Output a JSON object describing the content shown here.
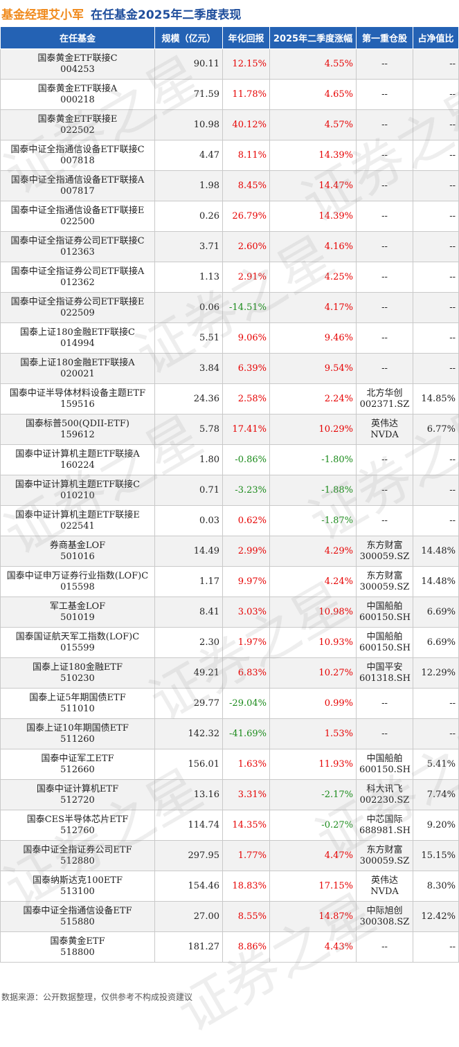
{
  "header": {
    "manager": "基金经理艾小军",
    "subtitle": "在任基金2025年二季度表现"
  },
  "columns": [
    "在任基金",
    "规模（亿元）",
    "年化回报",
    "2025年二季度涨幅",
    "第一重仓股",
    "占净值比"
  ],
  "rows": [
    {
      "name": "国泰黄金ETF联接C",
      "code": "004253",
      "size": "90.11",
      "annual": "12.15%",
      "annual_sign": "pos",
      "q2": "4.55%",
      "q2_sign": "pos",
      "stock": "--",
      "stock_code": "",
      "ratio": "--"
    },
    {
      "name": "国泰黄金ETF联接A",
      "code": "000218",
      "size": "71.59",
      "annual": "11.78%",
      "annual_sign": "pos",
      "q2": "4.65%",
      "q2_sign": "pos",
      "stock": "--",
      "stock_code": "",
      "ratio": "--"
    },
    {
      "name": "国泰黄金ETF联接E",
      "code": "022502",
      "size": "10.98",
      "annual": "40.12%",
      "annual_sign": "pos",
      "q2": "4.57%",
      "q2_sign": "pos",
      "stock": "--",
      "stock_code": "",
      "ratio": "--"
    },
    {
      "name": "国泰中证全指通信设备ETF联接C",
      "code": "007818",
      "size": "4.47",
      "annual": "8.11%",
      "annual_sign": "pos",
      "q2": "14.39%",
      "q2_sign": "pos",
      "stock": "--",
      "stock_code": "",
      "ratio": "--"
    },
    {
      "name": "国泰中证全指通信设备ETF联接A",
      "code": "007817",
      "size": "1.98",
      "annual": "8.45%",
      "annual_sign": "pos",
      "q2": "14.47%",
      "q2_sign": "pos",
      "stock": "--",
      "stock_code": "",
      "ratio": "--"
    },
    {
      "name": "国泰中证全指通信设备ETF联接E",
      "code": "022500",
      "size": "0.26",
      "annual": "26.79%",
      "annual_sign": "pos",
      "q2": "14.39%",
      "q2_sign": "pos",
      "stock": "--",
      "stock_code": "",
      "ratio": "--"
    },
    {
      "name": "国泰中证全指证券公司ETF联接C",
      "code": "012363",
      "size": "3.71",
      "annual": "2.60%",
      "annual_sign": "pos",
      "q2": "4.16%",
      "q2_sign": "pos",
      "stock": "--",
      "stock_code": "",
      "ratio": "--"
    },
    {
      "name": "国泰中证全指证券公司ETF联接A",
      "code": "012362",
      "size": "1.13",
      "annual": "2.91%",
      "annual_sign": "pos",
      "q2": "4.25%",
      "q2_sign": "pos",
      "stock": "--",
      "stock_code": "",
      "ratio": "--"
    },
    {
      "name": "国泰中证全指证券公司ETF联接E",
      "code": "022509",
      "size": "0.06",
      "annual": "-14.51%",
      "annual_sign": "neg",
      "q2": "4.17%",
      "q2_sign": "pos",
      "stock": "--",
      "stock_code": "",
      "ratio": "--"
    },
    {
      "name": "国泰上证180金融ETF联接C",
      "code": "014994",
      "size": "5.51",
      "annual": "9.06%",
      "annual_sign": "pos",
      "q2": "9.46%",
      "q2_sign": "pos",
      "stock": "--",
      "stock_code": "",
      "ratio": "--"
    },
    {
      "name": "国泰上证180金融ETF联接A",
      "code": "020021",
      "size": "3.84",
      "annual": "6.39%",
      "annual_sign": "pos",
      "q2": "9.54%",
      "q2_sign": "pos",
      "stock": "--",
      "stock_code": "",
      "ratio": "--"
    },
    {
      "name": "国泰中证半导体材料设备主题ETF",
      "code": "159516",
      "size": "24.36",
      "annual": "2.58%",
      "annual_sign": "pos",
      "q2": "2.24%",
      "q2_sign": "pos",
      "stock": "北方华创",
      "stock_code": "002371.SZ",
      "ratio": "14.85%"
    },
    {
      "name": "国泰标普500(QDII-ETF)",
      "code": "159612",
      "size": "5.78",
      "annual": "17.41%",
      "annual_sign": "pos",
      "q2": "10.29%",
      "q2_sign": "pos",
      "stock": "英伟达",
      "stock_code": "NVDA",
      "ratio": "6.77%"
    },
    {
      "name": "国泰中证计算机主题ETF联接A",
      "code": "160224",
      "size": "1.80",
      "annual": "-0.86%",
      "annual_sign": "neg",
      "q2": "-1.80%",
      "q2_sign": "neg",
      "stock": "--",
      "stock_code": "",
      "ratio": "--"
    },
    {
      "name": "国泰中证计算机主题ETF联接C",
      "code": "010210",
      "size": "0.71",
      "annual": "-3.23%",
      "annual_sign": "neg",
      "q2": "-1.88%",
      "q2_sign": "neg",
      "stock": "--",
      "stock_code": "",
      "ratio": "--"
    },
    {
      "name": "国泰中证计算机主题ETF联接E",
      "code": "022541",
      "size": "0.03",
      "annual": "0.62%",
      "annual_sign": "pos",
      "q2": "-1.87%",
      "q2_sign": "neg",
      "stock": "--",
      "stock_code": "",
      "ratio": "--"
    },
    {
      "name": "券商基金LOF",
      "code": "501016",
      "size": "14.49",
      "annual": "2.99%",
      "annual_sign": "pos",
      "q2": "4.29%",
      "q2_sign": "pos",
      "stock": "东方财富",
      "stock_code": "300059.SZ",
      "ratio": "14.48%"
    },
    {
      "name": "国泰中证申万证券行业指数(LOF)C",
      "code": "015598",
      "size": "1.17",
      "annual": "9.97%",
      "annual_sign": "pos",
      "q2": "4.24%",
      "q2_sign": "pos",
      "stock": "东方财富",
      "stock_code": "300059.SZ",
      "ratio": "14.48%"
    },
    {
      "name": "军工基金LOF",
      "code": "501019",
      "size": "8.41",
      "annual": "3.03%",
      "annual_sign": "pos",
      "q2": "10.98%",
      "q2_sign": "pos",
      "stock": "中国船舶",
      "stock_code": "600150.SH",
      "ratio": "6.69%"
    },
    {
      "name": "国泰国证航天军工指数(LOF)C",
      "code": "015599",
      "size": "2.30",
      "annual": "1.97%",
      "annual_sign": "pos",
      "q2": "10.93%",
      "q2_sign": "pos",
      "stock": "中国船舶",
      "stock_code": "600150.SH",
      "ratio": "6.69%"
    },
    {
      "name": "国泰上证180金融ETF",
      "code": "510230",
      "size": "49.21",
      "annual": "6.83%",
      "annual_sign": "pos",
      "q2": "10.27%",
      "q2_sign": "pos",
      "stock": "中国平安",
      "stock_code": "601318.SH",
      "ratio": "12.29%"
    },
    {
      "name": "国泰上证5年期国债ETF",
      "code": "511010",
      "size": "29.77",
      "annual": "-29.04%",
      "annual_sign": "neg",
      "q2": "0.99%",
      "q2_sign": "pos",
      "stock": "--",
      "stock_code": "",
      "ratio": "--"
    },
    {
      "name": "国泰上证10年期国债ETF",
      "code": "511260",
      "size": "142.32",
      "annual": "-41.69%",
      "annual_sign": "neg",
      "q2": "1.53%",
      "q2_sign": "pos",
      "stock": "--",
      "stock_code": "",
      "ratio": "--"
    },
    {
      "name": "国泰中证军工ETF",
      "code": "512660",
      "size": "156.01",
      "annual": "1.63%",
      "annual_sign": "pos",
      "q2": "11.93%",
      "q2_sign": "pos",
      "stock": "中国船舶",
      "stock_code": "600150.SH",
      "ratio": "5.41%"
    },
    {
      "name": "国泰中证计算机ETF",
      "code": "512720",
      "size": "13.16",
      "annual": "3.31%",
      "annual_sign": "pos",
      "q2": "-2.17%",
      "q2_sign": "neg",
      "stock": "科大讯飞",
      "stock_code": "002230.SZ",
      "ratio": "7.74%"
    },
    {
      "name": "国泰CES半导体芯片ETF",
      "code": "512760",
      "size": "114.74",
      "annual": "14.35%",
      "annual_sign": "pos",
      "q2": "-0.27%",
      "q2_sign": "neg",
      "stock": "中芯国际",
      "stock_code": "688981.SH",
      "ratio": "9.20%"
    },
    {
      "name": "国泰中证全指证券公司ETF",
      "code": "512880",
      "size": "297.95",
      "annual": "1.77%",
      "annual_sign": "pos",
      "q2": "4.47%",
      "q2_sign": "pos",
      "stock": "东方财富",
      "stock_code": "300059.SZ",
      "ratio": "15.15%"
    },
    {
      "name": "国泰纳斯达克100ETF",
      "code": "513100",
      "size": "154.46",
      "annual": "18.83%",
      "annual_sign": "pos",
      "q2": "17.15%",
      "q2_sign": "pos",
      "stock": "英伟达",
      "stock_code": "NVDA",
      "ratio": "8.30%"
    },
    {
      "name": "国泰中证全指通信设备ETF",
      "code": "515880",
      "size": "27.00",
      "annual": "8.55%",
      "annual_sign": "pos",
      "q2": "14.87%",
      "q2_sign": "pos",
      "stock": "中际旭创",
      "stock_code": "300308.SZ",
      "ratio": "12.42%"
    },
    {
      "name": "国泰黄金ETF",
      "code": "518800",
      "size": "181.27",
      "annual": "8.86%",
      "annual_sign": "pos",
      "q2": "4.43%",
      "q2_sign": "pos",
      "stock": "--",
      "stock_code": "",
      "ratio": "--"
    }
  ],
  "footer": "数据来源：公开数据整理，仅供参考不构成投资建议",
  "watermark": "证券之星",
  "colors": {
    "positive": "#e60000",
    "negative": "#1a8a1a",
    "header_bg": "#2462b4",
    "manager": "#f08a1c",
    "subtitle": "#1f4e9c"
  }
}
